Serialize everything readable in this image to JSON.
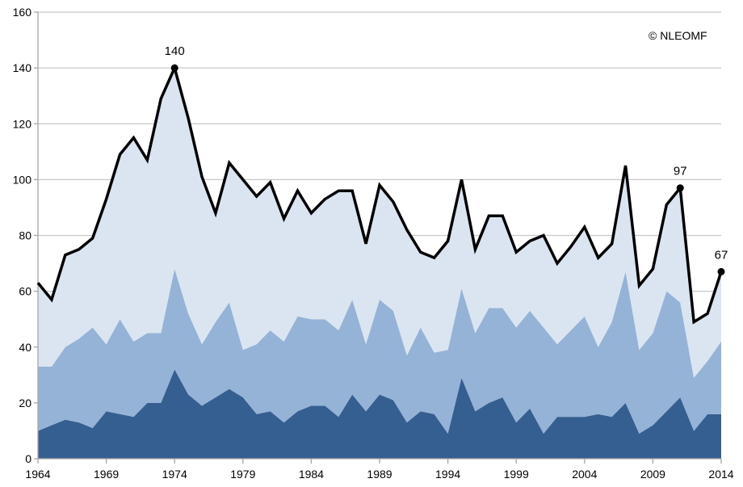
{
  "chart_data": {
    "type": "area",
    "stacked": true,
    "title": "",
    "xlabel": "",
    "ylabel": "",
    "xlim": [
      1964,
      2014
    ],
    "ylim": [
      0,
      160
    ],
    "x_ticks": [
      1964,
      1969,
      1974,
      1979,
      1984,
      1989,
      1994,
      1999,
      2004,
      2009,
      2014
    ],
    "y_ticks": [
      0,
      20,
      40,
      60,
      80,
      100,
      120,
      140,
      160
    ],
    "grid": "horizontal",
    "legend": "none",
    "copyright": "© NLEOMF",
    "x": [
      1964,
      1965,
      1966,
      1967,
      1968,
      1969,
      1970,
      1971,
      1972,
      1973,
      1974,
      1975,
      1976,
      1977,
      1978,
      1979,
      1980,
      1981,
      1982,
      1983,
      1984,
      1985,
      1986,
      1987,
      1988,
      1989,
      1990,
      1991,
      1992,
      1993,
      1994,
      1995,
      1996,
      1997,
      1998,
      1999,
      2000,
      2001,
      2002,
      2003,
      2004,
      2005,
      2006,
      2007,
      2008,
      2009,
      2010,
      2011,
      2012,
      2013,
      2014
    ],
    "series": [
      {
        "color": "#365f91",
        "values": [
          10,
          12,
          14,
          13,
          11,
          17,
          16,
          15,
          20,
          20,
          32,
          23,
          19,
          22,
          25,
          22,
          16,
          17,
          13,
          17,
          19,
          19,
          15,
          23,
          17,
          23,
          21,
          13,
          17,
          16,
          9,
          29,
          17,
          20,
          22,
          13,
          18,
          9,
          15,
          15,
          15,
          16,
          15,
          20,
          9,
          12,
          17,
          22,
          10,
          16,
          16
        ]
      },
      {
        "color": "#95b3d7",
        "values": [
          23,
          21,
          26,
          30,
          36,
          24,
          34,
          27,
          25,
          25,
          36,
          29,
          22,
          27,
          31,
          17,
          25,
          29,
          29,
          34,
          31,
          31,
          31,
          34,
          24,
          34,
          32,
          24,
          30,
          22,
          30,
          32,
          28,
          34,
          32,
          34,
          35,
          38,
          26,
          31,
          36,
          24,
          34,
          47,
          30,
          33,
          43,
          34,
          19,
          19,
          26
        ]
      },
      {
        "color": "#dbe5f1",
        "values": [
          30,
          24,
          33,
          32,
          32,
          52,
          59,
          73,
          62,
          84,
          72,
          70,
          60,
          39,
          50,
          61,
          53,
          53,
          44,
          45,
          38,
          43,
          50,
          39,
          36,
          41,
          39,
          45,
          27,
          34,
          39,
          39,
          30,
          33,
          33,
          27,
          25,
          33,
          29,
          30,
          32,
          32,
          28,
          38,
          23,
          23,
          31,
          41,
          20,
          17,
          25
        ]
      }
    ],
    "total_line": {
      "color": "#000000",
      "values": [
        63,
        57,
        73,
        75,
        79,
        93,
        109,
        115,
        107,
        129,
        140,
        122,
        101,
        88,
        106,
        100,
        94,
        99,
        86,
        96,
        88,
        93,
        96,
        96,
        77,
        98,
        92,
        82,
        74,
        72,
        78,
        100,
        75,
        87,
        87,
        74,
        78,
        80,
        70,
        76,
        83,
        72,
        77,
        105,
        62,
        68,
        91,
        97,
        49,
        52,
        67
      ]
    },
    "annotations": [
      {
        "x": 1974,
        "y": 140,
        "label": "140"
      },
      {
        "x": 2011,
        "y": 97,
        "label": "97"
      },
      {
        "x": 2014,
        "y": 67,
        "label": "67"
      }
    ]
  }
}
